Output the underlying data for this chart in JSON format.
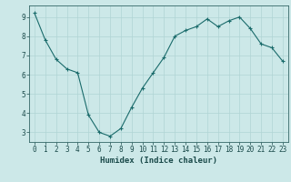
{
  "xlabel": "Humidex (Indice chaleur)",
  "x": [
    0,
    1,
    2,
    3,
    4,
    5,
    6,
    7,
    8,
    9,
    10,
    11,
    12,
    13,
    14,
    15,
    16,
    17,
    18,
    19,
    20,
    21,
    22,
    23
  ],
  "y": [
    9.2,
    7.8,
    6.8,
    6.3,
    6.1,
    3.9,
    3.0,
    2.8,
    3.2,
    4.3,
    5.3,
    6.1,
    6.9,
    8.0,
    8.3,
    8.5,
    8.9,
    8.5,
    8.8,
    9.0,
    8.4,
    7.6,
    7.4,
    6.7
  ],
  "line_color": "#1a6b6b",
  "marker_color": "#1a6b6b",
  "bg_color": "#cce8e8",
  "grid_color": "#b0d4d4",
  "axis_color": "#336666",
  "tick_color": "#1a4a4a",
  "ylim": [
    2.5,
    9.6
  ],
  "yticks": [
    3,
    4,
    5,
    6,
    7,
    8,
    9
  ],
  "xticks": [
    0,
    1,
    2,
    3,
    4,
    5,
    6,
    7,
    8,
    9,
    10,
    11,
    12,
    13,
    14,
    15,
    16,
    17,
    18,
    19,
    20,
    21,
    22,
    23
  ],
  "xlabel_fontsize": 6.5,
  "tick_fontsize": 5.5
}
